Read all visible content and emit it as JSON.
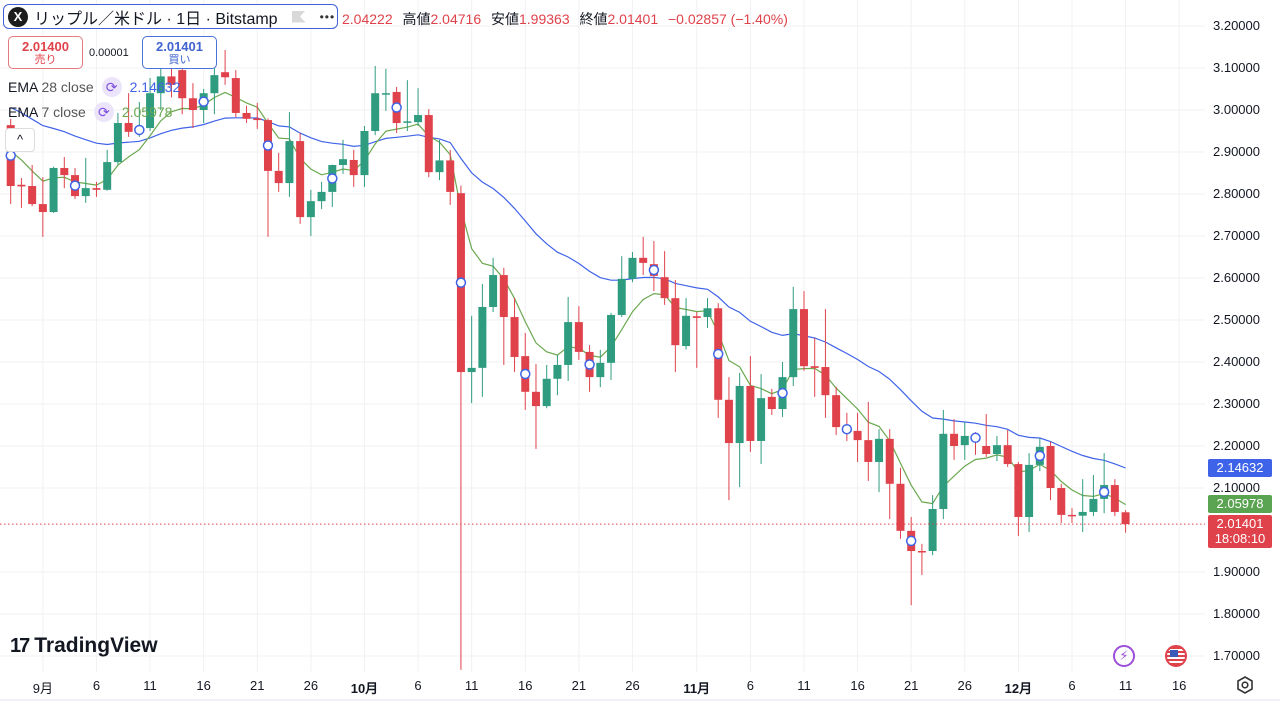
{
  "header": {
    "symbol_title": "リップル／米ドル · 1日 · Bitstamp",
    "logo_letter": "X",
    "more_label": "•••",
    "ohlc": {
      "open": "2.04222",
      "high_label": "高値",
      "high": "2.04716",
      "low_label": "安値",
      "low": "1.99363",
      "close_label": "終値",
      "close": "2.01401",
      "change": "−0.02857 (−1.40%)"
    }
  },
  "trade": {
    "sell_price": "2.01400",
    "sell_label": "売り",
    "spread": "0.00001",
    "buy_price": "2.01401",
    "buy_label": "買い"
  },
  "indicators": [
    {
      "name": "EMA",
      "params": "28 close",
      "value": "2.14632",
      "color": "#3f63e8"
    },
    {
      "name": "EMA",
      "params": "7 close",
      "value": "2.05978",
      "color": "#6aa84f"
    }
  ],
  "collapse_label": "^",
  "brand": {
    "logo_mark": "17",
    "name": "TradingView"
  },
  "price_labels": {
    "ema28": "2.14632",
    "ema7": "2.05978",
    "last": "2.01401",
    "countdown": "18:08:10"
  },
  "colors": {
    "up": "#2f9c80",
    "down": "#e0424b",
    "ema28": "#3f63e8",
    "ema7": "#6aa84f",
    "grid": "#f0f1f3"
  },
  "chart_data": {
    "type": "candlestick",
    "ylim": [
      1.65,
      3.23
    ],
    "grid": true,
    "y_ticks": [
      "3.20000",
      "3.10000",
      "3.00000",
      "2.90000",
      "2.80000",
      "2.70000",
      "2.60000",
      "2.50000",
      "2.40000",
      "2.30000",
      "2.20000",
      "2.10000",
      "1.90000",
      "1.80000",
      "1.70000"
    ],
    "x_ticks": [
      {
        "date": "9/1",
        "label": "9月"
      },
      {
        "date": "9/6",
        "label": "6"
      },
      {
        "date": "9/11",
        "label": "11"
      },
      {
        "date": "9/16",
        "label": "16"
      },
      {
        "date": "9/21",
        "label": "21"
      },
      {
        "date": "9/26",
        "label": "26"
      },
      {
        "date": "10/1",
        "label": "10月"
      },
      {
        "date": "10/6",
        "label": "6"
      },
      {
        "date": "10/11",
        "label": "11"
      },
      {
        "date": "10/16",
        "label": "16"
      },
      {
        "date": "10/21",
        "label": "21"
      },
      {
        "date": "10/26",
        "label": "26"
      },
      {
        "date": "11/1",
        "label": "11月"
      },
      {
        "date": "11/6",
        "label": "6"
      },
      {
        "date": "11/11",
        "label": "11"
      },
      {
        "date": "11/16",
        "label": "16"
      },
      {
        "date": "11/21",
        "label": "21"
      },
      {
        "date": "11/26",
        "label": "26"
      },
      {
        "date": "12/1",
        "label": "12月"
      },
      {
        "date": "12/6",
        "label": "6"
      },
      {
        "date": "12/11",
        "label": "11"
      },
      {
        "date": "12/16",
        "label": "16"
      }
    ],
    "candles_columns": [
      "date",
      "open",
      "high",
      "low",
      "close"
    ],
    "candles": [
      [
        "8/29",
        2.964,
        2.979,
        2.776,
        2.819
      ],
      [
        "8/30",
        2.822,
        2.838,
        2.767,
        2.818
      ],
      [
        "8/31",
        2.819,
        2.869,
        2.771,
        2.776
      ],
      [
        "9/1",
        2.776,
        2.84,
        2.698,
        2.757
      ],
      [
        "9/2",
        2.757,
        2.865,
        2.755,
        2.862
      ],
      [
        "9/3",
        2.862,
        2.888,
        2.814,
        2.845
      ],
      [
        "9/4",
        2.845,
        2.862,
        2.788,
        2.795
      ],
      [
        "9/5",
        2.795,
        2.886,
        2.779,
        2.814
      ],
      [
        "9/6",
        2.814,
        2.829,
        2.793,
        2.81
      ],
      [
        "9/7",
        2.81,
        2.905,
        2.808,
        2.876
      ],
      [
        "9/8",
        2.876,
        2.993,
        2.87,
        2.969
      ],
      [
        "9/9",
        2.969,
        3.04,
        2.936,
        2.948
      ],
      [
        "9/10",
        2.948,
        3.019,
        2.936,
        2.957
      ],
      [
        "9/11",
        2.957,
        3.076,
        2.95,
        3.04
      ],
      [
        "9/12",
        3.04,
        3.12,
        3.0,
        3.08
      ],
      [
        "9/13",
        3.08,
        3.1,
        3.03,
        3.06
      ],
      [
        "9/14",
        3.095,
        3.11,
        2.99,
        3.028
      ],
      [
        "9/15",
        3.028,
        3.064,
        2.957,
        3.0
      ],
      [
        "9/16",
        3.0,
        3.05,
        2.969,
        3.04
      ],
      [
        "9/17",
        3.04,
        3.11,
        2.99,
        3.083
      ],
      [
        "9/18",
        3.09,
        3.143,
        3.06,
        3.078
      ],
      [
        "9/19",
        3.076,
        3.095,
        2.983,
        2.993
      ],
      [
        "9/20",
        2.993,
        3.01,
        2.969,
        2.979
      ],
      [
        "9/21",
        2.98,
        3.017,
        2.955,
        2.976
      ],
      [
        "9/22",
        2.976,
        2.98,
        2.698,
        2.855
      ],
      [
        "9/23",
        2.855,
        2.898,
        2.805,
        2.826
      ],
      [
        "9/24",
        2.826,
        2.995,
        2.793,
        2.926
      ],
      [
        "9/25",
        2.926,
        2.945,
        2.729,
        2.745
      ],
      [
        "9/26",
        2.745,
        2.81,
        2.7,
        2.783
      ],
      [
        "9/27",
        2.783,
        2.829,
        2.764,
        2.805
      ],
      [
        "9/28",
        2.805,
        2.87,
        2.769,
        2.869
      ],
      [
        "9/29",
        2.869,
        2.929,
        2.848,
        2.883
      ],
      [
        "9/30",
        2.881,
        2.905,
        2.817,
        2.845
      ],
      [
        "10/1",
        2.845,
        2.962,
        2.817,
        2.95
      ],
      [
        "10/2",
        2.95,
        3.105,
        2.94,
        3.04
      ],
      [
        "10/3",
        3.04,
        3.098,
        2.998,
        3.04
      ],
      [
        "10/4",
        3.043,
        3.055,
        2.945,
        2.969
      ],
      [
        "10/5",
        2.97,
        3.071,
        2.95,
        2.973
      ],
      [
        "10/6",
        2.971,
        3.052,
        2.962,
        2.988
      ],
      [
        "10/7",
        2.988,
        3.002,
        2.84,
        2.852
      ],
      [
        "10/8",
        2.852,
        2.929,
        2.833,
        2.88
      ],
      [
        "10/9",
        2.88,
        2.905,
        2.774,
        2.805
      ],
      [
        "10/10",
        2.802,
        2.82,
        1.667,
        2.376
      ],
      [
        "10/11",
        2.376,
        2.51,
        2.302,
        2.386
      ],
      [
        "10/12",
        2.386,
        2.586,
        2.317,
        2.531
      ],
      [
        "10/13",
        2.531,
        2.648,
        2.519,
        2.607
      ],
      [
        "10/14",
        2.607,
        2.624,
        2.393,
        2.507
      ],
      [
        "10/15",
        2.507,
        2.553,
        2.376,
        2.412
      ],
      [
        "10/16",
        2.414,
        2.469,
        2.286,
        2.329
      ],
      [
        "10/17",
        2.329,
        2.395,
        2.193,
        2.295
      ],
      [
        "10/18",
        2.295,
        2.393,
        2.29,
        2.36
      ],
      [
        "10/19",
        2.36,
        2.417,
        2.321,
        2.393
      ],
      [
        "10/20",
        2.393,
        2.555,
        2.355,
        2.495
      ],
      [
        "10/21",
        2.495,
        2.533,
        2.405,
        2.424
      ],
      [
        "10/22",
        2.424,
        2.44,
        2.329,
        2.364
      ],
      [
        "10/23",
        2.364,
        2.429,
        2.34,
        2.398
      ],
      [
        "10/24",
        2.398,
        2.517,
        2.357,
        2.512
      ],
      [
        "10/25",
        2.512,
        2.652,
        2.507,
        2.598
      ],
      [
        "10/26",
        2.598,
        2.662,
        2.59,
        2.648
      ],
      [
        "10/27",
        2.648,
        2.698,
        2.607,
        2.636
      ],
      [
        "10/28",
        2.633,
        2.688,
        2.569,
        2.605
      ],
      [
        "10/29",
        2.602,
        2.664,
        2.536,
        2.552
      ],
      [
        "10/30",
        2.552,
        2.595,
        2.376,
        2.44
      ],
      [
        "10/31",
        2.438,
        2.552,
        2.43,
        2.51
      ],
      [
        "11/1",
        2.509,
        2.519,
        2.386,
        2.505
      ],
      [
        "11/2",
        2.507,
        2.552,
        2.481,
        2.528
      ],
      [
        "11/3",
        2.528,
        2.54,
        2.267,
        2.31
      ],
      [
        "11/4",
        2.31,
        2.364,
        2.071,
        2.207
      ],
      [
        "11/5",
        2.207,
        2.374,
        2.102,
        2.343
      ],
      [
        "11/6",
        2.343,
        2.414,
        2.186,
        2.212
      ],
      [
        "11/7",
        2.212,
        2.371,
        2.157,
        2.314
      ],
      [
        "11/8",
        2.317,
        2.336,
        2.274,
        2.288
      ],
      [
        "11/9",
        2.288,
        2.4,
        2.269,
        2.364
      ],
      [
        "11/10",
        2.364,
        2.579,
        2.343,
        2.526
      ],
      [
        "11/11",
        2.526,
        2.569,
        2.379,
        2.39
      ],
      [
        "11/12",
        2.39,
        2.457,
        2.317,
        2.386
      ],
      [
        "11/13",
        2.388,
        2.526,
        2.267,
        2.321
      ],
      [
        "11/14",
        2.321,
        2.341,
        2.226,
        2.245
      ],
      [
        "11/15",
        2.242,
        2.279,
        2.212,
        2.238
      ],
      [
        "11/16",
        2.236,
        2.279,
        2.162,
        2.214
      ],
      [
        "11/17",
        2.214,
        2.305,
        2.117,
        2.162
      ],
      [
        "11/18",
        2.162,
        2.24,
        2.09,
        2.217
      ],
      [
        "11/19",
        2.217,
        2.24,
        2.026,
        2.11
      ],
      [
        "11/20",
        2.11,
        2.148,
        1.979,
        1.998
      ],
      [
        "11/21",
        1.998,
        2.031,
        1.821,
        1.95
      ],
      [
        "11/22",
        1.95,
        1.967,
        1.893,
        1.948
      ],
      [
        "11/23",
        1.95,
        2.083,
        1.94,
        2.05
      ],
      [
        "11/24",
        2.05,
        2.286,
        2.026,
        2.229
      ],
      [
        "11/25",
        2.229,
        2.264,
        2.167,
        2.2
      ],
      [
        "11/26",
        2.202,
        2.257,
        2.167,
        2.224
      ],
      [
        "11/27",
        2.224,
        2.233,
        2.179,
        2.215
      ],
      [
        "11/28",
        2.2,
        2.276,
        2.174,
        2.181
      ],
      [
        "11/29",
        2.181,
        2.224,
        2.164,
        2.202
      ],
      [
        "11/30",
        2.202,
        2.238,
        2.15,
        2.157
      ],
      [
        "12/1",
        2.157,
        2.162,
        1.986,
        2.031
      ],
      [
        "12/2",
        2.031,
        2.183,
        1.995,
        2.155
      ],
      [
        "12/3",
        2.155,
        2.219,
        2.14,
        2.198
      ],
      [
        "12/4",
        2.2,
        2.21,
        2.071,
        2.1
      ],
      [
        "12/5",
        2.1,
        2.11,
        2.017,
        2.036
      ],
      [
        "12/6",
        2.036,
        2.052,
        2.017,
        2.034
      ],
      [
        "12/7",
        2.034,
        2.121,
        1.995,
        2.043
      ],
      [
        "12/8",
        2.043,
        2.131,
        2.033,
        2.074
      ],
      [
        "12/9",
        2.074,
        2.183,
        2.04,
        2.107
      ],
      [
        "12/10",
        2.107,
        2.121,
        2.033,
        2.043
      ],
      [
        "12/11",
        2.04222,
        2.04716,
        1.99363,
        2.01401
      ]
    ],
    "markers": [
      "8/29",
      "9/4",
      "9/10",
      "9/16",
      "9/22",
      "9/28",
      "10/4",
      "10/10",
      "10/16",
      "10/22",
      "10/28",
      "11/3",
      "11/9",
      "11/15",
      "11/21",
      "11/27",
      "12/3",
      "12/9"
    ],
    "last_price": 2.01401,
    "ema_periods": [
      28,
      7
    ]
  }
}
